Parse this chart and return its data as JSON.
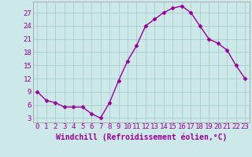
{
  "x": [
    0,
    1,
    2,
    3,
    4,
    5,
    6,
    7,
    8,
    9,
    10,
    11,
    12,
    13,
    14,
    15,
    16,
    17,
    18,
    19,
    20,
    21,
    22,
    23
  ],
  "y": [
    9,
    7,
    6.5,
    5.5,
    5.5,
    5.5,
    4,
    3,
    6.5,
    11.5,
    16,
    19.5,
    24,
    25.5,
    27,
    28,
    28.5,
    27,
    24,
    21,
    20,
    18.5,
    15,
    12
  ],
  "line_color": "#990099",
  "marker": "D",
  "marker_size": 2.5,
  "line_width": 1.0,
  "xlabel": "Windchill (Refroidissement éolien,°C)",
  "xlabel_fontsize": 7,
  "ylabel_ticks": [
    3,
    6,
    9,
    12,
    15,
    18,
    21,
    24,
    27
  ],
  "xlim": [
    -0.5,
    23.5
  ],
  "ylim": [
    2.0,
    29.5
  ],
  "bg_color": "#cce8e8",
  "grid_color": "#aacccc",
  "tick_label_fontsize": 6.5,
  "spine_color": "#aaaaaa"
}
